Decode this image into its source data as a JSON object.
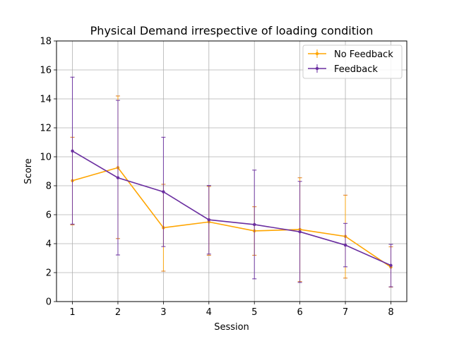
{
  "chart_data": {
    "type": "line",
    "title": "Physical Demand irrespective of loading condition",
    "xlabel": "Session",
    "ylabel": "Score",
    "x": [
      1,
      2,
      3,
      4,
      5,
      6,
      7,
      8
    ],
    "xlim": [
      0.65,
      8.35
    ],
    "ylim": [
      0,
      18
    ],
    "xticks": [
      "1",
      "2",
      "3",
      "4",
      "5",
      "6",
      "7",
      "8"
    ],
    "yticks": [
      "0",
      "2",
      "4",
      "6",
      "8",
      "10",
      "12",
      "14",
      "16",
      "18"
    ],
    "grid": true,
    "legend_position": "top-right",
    "series": [
      {
        "name": "No Feedback",
        "color": "#ffa500",
        "capcolor": "#e07b1a",
        "values": [
          8.35,
          9.25,
          5.1,
          5.5,
          4.88,
          4.98,
          4.5,
          2.38
        ],
        "err_low": [
          5.3,
          4.35,
          2.1,
          3.2,
          3.2,
          1.38,
          1.62,
          1.0
        ],
        "err_high": [
          11.35,
          14.2,
          8.1,
          7.95,
          6.55,
          8.55,
          7.35,
          3.78
        ]
      },
      {
        "name": "Feedback",
        "color": "#6a2ea0",
        "capcolor": "#6a2ea0",
        "values": [
          10.4,
          8.55,
          7.58,
          5.65,
          5.32,
          4.82,
          3.9,
          2.5
        ],
        "err_low": [
          5.35,
          3.22,
          3.8,
          3.28,
          1.57,
          1.32,
          2.4,
          1.02
        ],
        "err_high": [
          15.5,
          13.9,
          11.35,
          8.02,
          9.08,
          8.3,
          5.4,
          3.95
        ]
      }
    ]
  }
}
